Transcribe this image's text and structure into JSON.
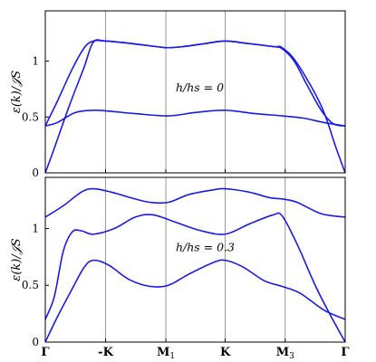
{
  "chart_data": [
    {
      "type": "line",
      "panel": "top",
      "ylabel": "ε(k)/𝒥S",
      "ylim": [
        0,
        1.45
      ],
      "xlim": [
        0,
        1
      ],
      "yticks": [
        {
          "v": 0,
          "label": "0"
        },
        {
          "v": 0.5,
          "label": "0.5"
        },
        {
          "v": 1,
          "label": "1"
        }
      ],
      "annotation": {
        "text": "h/hs = 0",
        "x": 0.435,
        "y": 0.73
      },
      "series": [
        {
          "values": [
            [
              0,
              0.42
            ],
            [
              0.04,
              0.64
            ],
            [
              0.09,
              0.93
            ],
            [
              0.13,
              1.12
            ],
            [
              0.16,
              1.18
            ],
            [
              0.2,
              1.18
            ],
            [
              0.28,
              1.16
            ],
            [
              0.37,
              1.13
            ],
            [
              0.41,
              1.12
            ],
            [
              0.46,
              1.13
            ],
            [
              0.54,
              1.16
            ],
            [
              0.6,
              1.18
            ],
            [
              0.67,
              1.16
            ],
            [
              0.76,
              1.13
            ],
            [
              0.79,
              1.12
            ],
            [
              0.84,
              0.98
            ],
            [
              0.92,
              0.6
            ],
            [
              0.97,
              0.22
            ],
            [
              1,
              0.0
            ]
          ]
        },
        {
          "values": [
            [
              0,
              0.0
            ],
            [
              0.03,
              0.22
            ],
            [
              0.08,
              0.6
            ],
            [
              0.13,
              0.95
            ],
            [
              0.16,
              1.17
            ],
            [
              0.2,
              1.18
            ],
            [
              0.28,
              1.16
            ],
            [
              0.37,
              1.13
            ],
            [
              0.41,
              1.12
            ],
            [
              0.46,
              1.13
            ],
            [
              0.54,
              1.16
            ],
            [
              0.6,
              1.18
            ],
            [
              0.67,
              1.16
            ],
            [
              0.76,
              1.13
            ],
            [
              0.79,
              1.11
            ],
            [
              0.83,
              1.0
            ],
            [
              0.87,
              0.8
            ],
            [
              0.92,
              0.56
            ],
            [
              0.96,
              0.44
            ],
            [
              1,
              0.42
            ]
          ]
        },
        {
          "values": [
            [
              0,
              0.42
            ],
            [
              0.04,
              0.45
            ],
            [
              0.1,
              0.54
            ],
            [
              0.16,
              0.56
            ],
            [
              0.22,
              0.55
            ],
            [
              0.3,
              0.53
            ],
            [
              0.41,
              0.51
            ],
            [
              0.5,
              0.54
            ],
            [
              0.6,
              0.56
            ],
            [
              0.7,
              0.53
            ],
            [
              0.79,
              0.51
            ],
            [
              0.86,
              0.49
            ],
            [
              0.93,
              0.45
            ],
            [
              1,
              0.42
            ]
          ]
        }
      ]
    },
    {
      "type": "line",
      "panel": "bottom",
      "ylabel": "ε(k)/𝒥S",
      "ylim": [
        0,
        1.45
      ],
      "xlim": [
        0,
        1
      ],
      "yticks": [
        {
          "v": 0,
          "label": "0"
        },
        {
          "v": 0.5,
          "label": "0.5"
        },
        {
          "v": 1,
          "label": "1"
        }
      ],
      "annotation": {
        "text": "h/hs = 0.3",
        "x": 0.435,
        "y": 0.8
      },
      "series": [
        {
          "values": [
            [
              0,
              1.1
            ],
            [
              0.06,
              1.2
            ],
            [
              0.12,
              1.32
            ],
            [
              0.16,
              1.35
            ],
            [
              0.22,
              1.32
            ],
            [
              0.3,
              1.26
            ],
            [
              0.35,
              1.23
            ],
            [
              0.41,
              1.23
            ],
            [
              0.48,
              1.3
            ],
            [
              0.56,
              1.34
            ],
            [
              0.6,
              1.35
            ],
            [
              0.68,
              1.32
            ],
            [
              0.75,
              1.27
            ],
            [
              0.79,
              1.26
            ],
            [
              0.84,
              1.23
            ],
            [
              0.92,
              1.13
            ],
            [
              1,
              1.1
            ]
          ]
        },
        {
          "values": [
            [
              0,
              0.2
            ],
            [
              0.03,
              0.4
            ],
            [
              0.06,
              0.8
            ],
            [
              0.09,
              0.97
            ],
            [
              0.12,
              0.98
            ],
            [
              0.16,
              0.95
            ],
            [
              0.23,
              1.0
            ],
            [
              0.3,
              1.1
            ],
            [
              0.36,
              1.12
            ],
            [
              0.44,
              1.05
            ],
            [
              0.52,
              0.98
            ],
            [
              0.6,
              0.95
            ],
            [
              0.68,
              1.04
            ],
            [
              0.76,
              1.12
            ],
            [
              0.79,
              1.11
            ],
            [
              0.84,
              0.86
            ],
            [
              0.9,
              0.5
            ],
            [
              0.95,
              0.24
            ],
            [
              1,
              0.0
            ]
          ]
        },
        {
          "values": [
            [
              0,
              0.0
            ],
            [
              0.04,
              0.22
            ],
            [
              0.09,
              0.47
            ],
            [
              0.13,
              0.66
            ],
            [
              0.16,
              0.72
            ],
            [
              0.21,
              0.68
            ],
            [
              0.28,
              0.55
            ],
            [
              0.35,
              0.49
            ],
            [
              0.41,
              0.5
            ],
            [
              0.48,
              0.6
            ],
            [
              0.56,
              0.7
            ],
            [
              0.6,
              0.72
            ],
            [
              0.66,
              0.66
            ],
            [
              0.73,
              0.54
            ],
            [
              0.79,
              0.49
            ],
            [
              0.85,
              0.43
            ],
            [
              0.93,
              0.28
            ],
            [
              1,
              0.2
            ]
          ]
        }
      ]
    }
  ],
  "xaxis": {
    "ticks": [
      {
        "v": 0.0,
        "label": "Γ"
      },
      {
        "v": 0.201,
        "label": "-K"
      },
      {
        "v": 0.402,
        "label": "M",
        "sub": "1"
      },
      {
        "v": 0.6,
        "label": "K"
      },
      {
        "v": 0.8,
        "label": "M",
        "sub": "3"
      },
      {
        "v": 1.0,
        "label": "Γ"
      }
    ]
  },
  "colors": {
    "curve": "#1a1ae6",
    "vline": "#808080",
    "axis": "#000000"
  }
}
